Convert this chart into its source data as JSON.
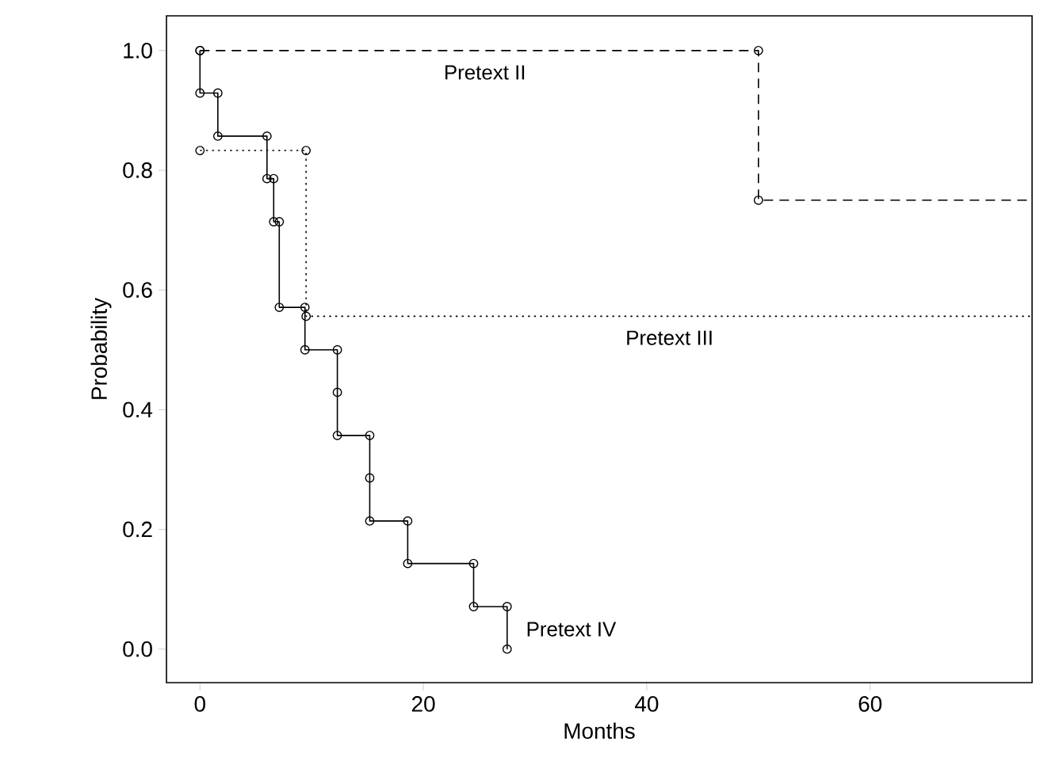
{
  "chart_data": {
    "type": "line",
    "xlabel": "Months",
    "ylabel": "Probability",
    "xlim": [
      -3,
      74.5
    ],
    "ylim": [
      -0.056,
      1.058
    ],
    "xticks": [
      0,
      20,
      40,
      60
    ],
    "yticks": [
      {
        "value": 0,
        "label": "0.0"
      },
      {
        "value": 0.2,
        "label": "0.2"
      },
      {
        "value": 0.4,
        "label": "0.4"
      },
      {
        "value": 0.6,
        "label": "0.6"
      },
      {
        "value": 0.8,
        "label": "0.8"
      },
      {
        "value": 1,
        "label": "1.0"
      }
    ],
    "marker": "circle",
    "series": [
      {
        "color": "#000000",
        "line_style": "dashed",
        "x": [
          0,
          50,
          50,
          74.5
        ],
        "values": [
          1.0,
          1.0,
          0.75,
          0.75
        ]
      },
      {
        "color": "#000000",
        "line_style": "dotted",
        "x": [
          0,
          9.5,
          9.5,
          74.5
        ],
        "values": [
          0.833,
          0.833,
          0.556,
          0.556
        ]
      },
      {
        "color": "#000000",
        "line_style": "solid",
        "x": [
          0,
          0,
          1.6,
          1.6,
          6.0,
          6.0,
          6.6,
          6.6,
          7.1,
          7.1,
          9.4,
          9.4,
          12.3,
          12.3,
          15.2,
          15.2,
          18.6,
          18.6,
          24.5,
          24.5,
          27.5,
          27.5
        ],
        "values": [
          1.0,
          0.929,
          0.929,
          0.857,
          0.857,
          0.786,
          0.786,
          0.714,
          0.714,
          0.571,
          0.571,
          0.5,
          0.5,
          0.357,
          0.357,
          0.214,
          0.214,
          0.143,
          0.143,
          0.071,
          0.071,
          0
        ]
      },
      {
        "type": "scatter",
        "color": "#000000",
        "x": [
          12.3,
          15.2
        ],
        "values": [
          0.429,
          0.286
        ]
      }
    ],
    "annotations": [
      "Pretext II",
      "Pretext III",
      "Pretext IV"
    ]
  }
}
